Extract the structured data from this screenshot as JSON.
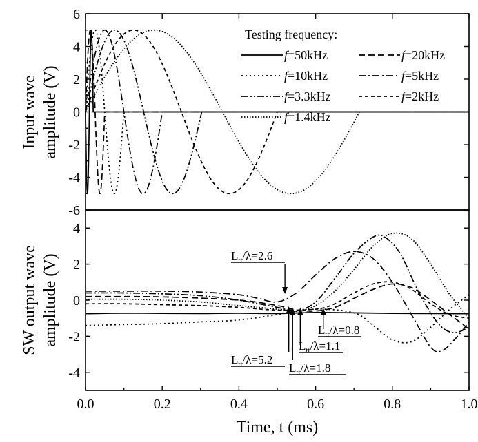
{
  "chart_data": [
    {
      "type": "line",
      "ylabel": [
        "Input wave",
        "amplitude (V)"
      ],
      "xlabel": "",
      "xlim": [
        0.0,
        1.0
      ],
      "ylim": [
        -6,
        6
      ],
      "yticks": [
        "-6",
        "-4",
        "-2",
        "0",
        "2",
        "4",
        "6"
      ],
      "legend_title": "Testing frequency:",
      "legend_position": "top-right",
      "series": [
        {
          "name": "f=50kHz",
          "italic_prefix": "f",
          "label_rest": "=50kHz",
          "dash": "solid",
          "frequency_khz": 50,
          "amplitude": 5,
          "cycles": 1
        },
        {
          "name": "f=20kHz",
          "italic_prefix": "f",
          "label_rest": "=20kHz",
          "dash": "dash",
          "frequency_khz": 20,
          "amplitude": 5,
          "cycles": 1
        },
        {
          "name": "f=10kHz",
          "italic_prefix": "f",
          "label_rest": "=10kHz",
          "dash": "dot",
          "frequency_khz": 10,
          "amplitude": 5,
          "cycles": 1
        },
        {
          "name": "f=5kHz",
          "italic_prefix": "f",
          "label_rest": "=5kHz",
          "dash": "dashdot",
          "frequency_khz": 5,
          "amplitude": 5,
          "cycles": 1
        },
        {
          "name": "f=3.3kHz",
          "italic_prefix": "f",
          "label_rest": "=3.3kHz",
          "dash": "dashdotdot",
          "frequency_khz": 3.3,
          "amplitude": 5,
          "cycles": 1
        },
        {
          "name": "f=2kHz",
          "italic_prefix": "f",
          "label_rest": "=2kHz",
          "dash": "shortdash",
          "frequency_khz": 2,
          "amplitude": 5,
          "cycles": 1
        },
        {
          "name": "f=1.4kHz",
          "italic_prefix": "f",
          "label_rest": "=1.4kHz",
          "dash": "shortdot",
          "frequency_khz": 1.4,
          "amplitude": 5,
          "cycles": 1
        }
      ]
    },
    {
      "type": "line",
      "ylabel": [
        "SW output wave",
        "amplitude (V)"
      ],
      "xlabel": "Time, t (ms)",
      "xlim": [
        0.0,
        1.0
      ],
      "ylim": [
        -5,
        5
      ],
      "xticks": [
        "0.0",
        "0.2",
        "0.4",
        "0.6",
        "0.8",
        "1.0"
      ],
      "yticks": [
        "-4",
        "-2",
        "0",
        "2",
        "4"
      ],
      "series": [
        {
          "name": "f=50kHz",
          "dash": "solid",
          "points": [
            [
              0,
              -0.75
            ],
            [
              0.1,
              -0.72
            ],
            [
              0.2,
              -0.73
            ],
            [
              0.3,
              -0.74
            ],
            [
              0.4,
              -0.72
            ],
            [
              0.5,
              -0.74
            ],
            [
              0.6,
              -0.68
            ],
            [
              0.7,
              -0.7
            ],
            [
              0.8,
              -0.73
            ],
            [
              0.9,
              -0.74
            ],
            [
              1.0,
              -0.75
            ]
          ]
        },
        {
          "name": "f=20kHz",
          "dash": "dash",
          "points": [
            [
              0,
              0.2
            ],
            [
              0.2,
              0.18
            ],
            [
              0.4,
              0.0
            ],
            [
              0.5,
              -0.3
            ],
            [
              0.55,
              -0.55
            ],
            [
              0.6,
              -0.6
            ],
            [
              0.65,
              -0.4
            ],
            [
              0.7,
              0.1
            ],
            [
              0.75,
              0.6
            ],
            [
              0.8,
              0.9
            ],
            [
              0.85,
              0.7
            ],
            [
              0.9,
              0.0
            ],
            [
              0.95,
              -0.8
            ],
            [
              1.0,
              -1.6
            ]
          ]
        },
        {
          "name": "f=10kHz",
          "dash": "dot",
          "points": [
            [
              0,
              -1.4
            ],
            [
              0.1,
              -1.35
            ],
            [
              0.2,
              -1.3
            ],
            [
              0.3,
              -1.2
            ],
            [
              0.4,
              -1.1
            ],
            [
              0.5,
              -0.8
            ],
            [
              0.6,
              -0.5
            ],
            [
              0.7,
              -0.7
            ],
            [
              0.75,
              -1.4
            ],
            [
              0.8,
              -2.2
            ],
            [
              0.85,
              -2.3
            ],
            [
              0.9,
              -1.5
            ],
            [
              0.95,
              -0.5
            ],
            [
              1.0,
              0.3
            ]
          ]
        },
        {
          "name": "f=5kHz",
          "dash": "dashdot",
          "points": [
            [
              0,
              0.5
            ],
            [
              0.1,
              0.5
            ],
            [
              0.2,
              0.5
            ],
            [
              0.3,
              0.45
            ],
            [
              0.4,
              0.3
            ],
            [
              0.45,
              0.1
            ],
            [
              0.5,
              -0.1
            ],
            [
              0.55,
              0.4
            ],
            [
              0.6,
              1.4
            ],
            [
              0.65,
              2.3
            ],
            [
              0.7,
              2.7
            ],
            [
              0.75,
              2.3
            ],
            [
              0.8,
              1.0
            ],
            [
              0.85,
              -0.8
            ],
            [
              0.9,
              -2.6
            ],
            [
              0.93,
              -2.8
            ],
            [
              0.97,
              -2.0
            ],
            [
              1.0,
              -1.2
            ]
          ]
        },
        {
          "name": "f=3.3kHz",
          "dash": "dashdotdot",
          "points": [
            [
              0,
              0.4
            ],
            [
              0.1,
              0.4
            ],
            [
              0.2,
              0.35
            ],
            [
              0.3,
              0.25
            ],
            [
              0.4,
              0.0
            ],
            [
              0.5,
              -0.4
            ],
            [
              0.55,
              -0.6
            ],
            [
              0.6,
              -0.1
            ],
            [
              0.65,
              1.2
            ],
            [
              0.7,
              2.6
            ],
            [
              0.75,
              3.5
            ],
            [
              0.78,
              3.5
            ],
            [
              0.82,
              2.6
            ],
            [
              0.87,
              0.4
            ],
            [
              0.92,
              -1.3
            ],
            [
              0.96,
              -1.8
            ],
            [
              1.0,
              -1.5
            ]
          ]
        },
        {
          "name": "f=2kHz",
          "dash": "shortdash",
          "points": [
            [
              0,
              -0.2
            ],
            [
              0.1,
              -0.2
            ],
            [
              0.2,
              -0.25
            ],
            [
              0.3,
              -0.3
            ],
            [
              0.4,
              -0.4
            ],
            [
              0.5,
              -0.55
            ],
            [
              0.6,
              -0.5
            ],
            [
              0.65,
              -0.2
            ],
            [
              0.7,
              0.4
            ],
            [
              0.75,
              0.9
            ],
            [
              0.8,
              1.0
            ],
            [
              0.85,
              0.6
            ],
            [
              0.9,
              -0.2
            ],
            [
              0.95,
              -0.8
            ],
            [
              1.0,
              -1.0
            ]
          ]
        },
        {
          "name": "f=1.4kHz",
          "dash": "shortdot",
          "points": [
            [
              0,
              0.05
            ],
            [
              0.1,
              0.05
            ],
            [
              0.2,
              0.0
            ],
            [
              0.3,
              -0.1
            ],
            [
              0.4,
              -0.3
            ],
            [
              0.5,
              -0.5
            ],
            [
              0.55,
              -0.6
            ],
            [
              0.6,
              -0.3
            ],
            [
              0.65,
              0.5
            ],
            [
              0.7,
              1.7
            ],
            [
              0.75,
              3.0
            ],
            [
              0.8,
              3.7
            ],
            [
              0.85,
              3.4
            ],
            [
              0.9,
              2.0
            ],
            [
              0.95,
              0.3
            ],
            [
              1.0,
              -1.0
            ]
          ]
        }
      ],
      "annotations": [
        {
          "text_main": "L",
          "text_sub": "tt",
          "text_tail": "/λ=2.6",
          "text": "Ltt/λ=2.6",
          "x": 0.52,
          "y": 0.0
        },
        {
          "text_main": "L",
          "text_sub": "tt",
          "text_tail": "/λ=0.8",
          "text": "Ltt/λ=0.8",
          "x": 0.62,
          "y": -0.6
        },
        {
          "text_main": "L",
          "text_sub": "tt",
          "text_tail": "/λ=1.1",
          "text": "Ltt/λ=1.1",
          "x": 0.56,
          "y": -0.6
        },
        {
          "text_main": "L",
          "text_sub": "tt",
          "text_tail": "/λ=1.8",
          "text": "Ltt/λ=1.8",
          "x": 0.54,
          "y": -0.6
        },
        {
          "text_main": "L",
          "text_sub": "tt",
          "text_tail": "/λ=5.2",
          "text": "Ltt/λ=5.2",
          "x": 0.53,
          "y": -0.6
        }
      ]
    }
  ]
}
